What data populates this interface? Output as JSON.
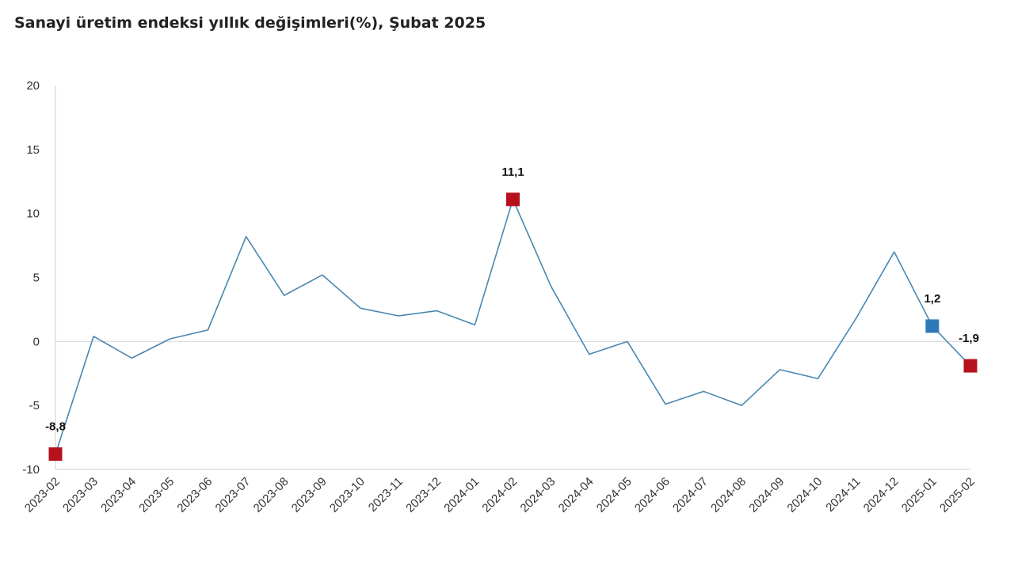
{
  "title": "Sanayi üretim endeksi yıllık değişimleri(%), Şubat 2025",
  "colors": {
    "line": "#4a87b0",
    "highlight_red": "#b5121b",
    "highlight_blue": "#2e7ab8",
    "axis": "#cccccc",
    "zero_line": "#d9d9d9"
  },
  "chart_data": {
    "type": "line",
    "title": "Sanayi üretim endeksi yıllık değişimleri(%), Şubat 2025",
    "xlabel": "",
    "ylabel": "",
    "ylim": [
      -10,
      20
    ],
    "yticks": [
      {
        "value": 20,
        "label": "20"
      },
      {
        "value": 15,
        "label": "15"
      },
      {
        "value": 10,
        "label": "10"
      },
      {
        "value": 5,
        "label": "5"
      },
      {
        "value": 0,
        "label": "0"
      },
      {
        "value": -5,
        "label": "-5"
      },
      {
        "value": -10,
        "label": "-10"
      }
    ],
    "grid": false,
    "categories": [
      "2023-02",
      "2023-03",
      "2023-04",
      "2023-05",
      "2023-06",
      "2023-07",
      "2023-08",
      "2023-09",
      "2023-10",
      "2023-11",
      "2023-12",
      "2024-01",
      "2024-02",
      "2024-03",
      "2024-04",
      "2024-05",
      "2024-06",
      "2024-07",
      "2024-08",
      "2024-09",
      "2024-10",
      "2024-11",
      "2024-12",
      "2025-01",
      "2025-02"
    ],
    "series": [
      {
        "values": [
          -8.8,
          0.4,
          -1.3,
          0.2,
          0.9,
          8.2,
          3.6,
          5.2,
          2.6,
          2.0,
          2.4,
          1.3,
          11.1,
          4.3,
          -1.0,
          0.0,
          -4.9,
          -3.9,
          -5.0,
          -2.2,
          -2.9,
          1.8,
          7.0,
          1.2,
          -1.9
        ]
      }
    ],
    "highlights": [
      {
        "index": 0,
        "label": "-8,8",
        "color": "red"
      },
      {
        "index": 12,
        "label": "11,1",
        "color": "red"
      },
      {
        "index": 23,
        "label": "1,2",
        "color": "blue"
      },
      {
        "index": 24,
        "label": "-1,9",
        "color": "red"
      }
    ]
  }
}
